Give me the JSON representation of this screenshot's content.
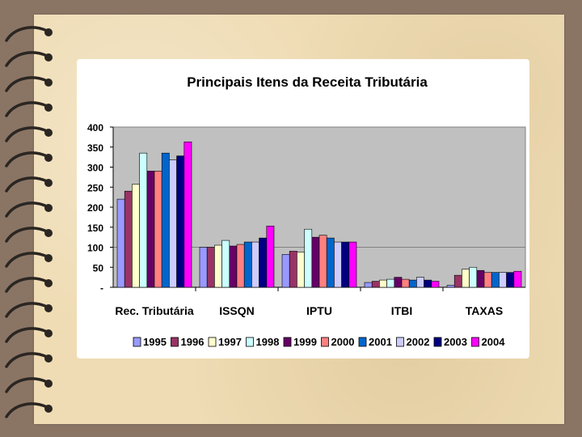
{
  "chart_data": {
    "type": "bar",
    "title": "Principais Itens da Receita Tributária",
    "xlabel": "",
    "ylabel": "",
    "ylim": [
      0,
      400
    ],
    "yticks": [
      0,
      50,
      100,
      150,
      200,
      250,
      300,
      350,
      400
    ],
    "ytick_labels": [
      "-",
      "50",
      "100",
      "150",
      "200",
      "250",
      "300",
      "350",
      "400"
    ],
    "grid": "horizontal",
    "legend": "bottom",
    "categories": [
      "Rec. Tributária",
      "ISSQN",
      "IPTU",
      "ITBI",
      "TAXAS"
    ],
    "series": [
      {
        "name": "1995",
        "color": "#9999ff",
        "values": [
          220,
          100,
          82,
          12,
          5
        ]
      },
      {
        "name": "1996",
        "color": "#993366",
        "values": [
          240,
          100,
          90,
          15,
          30
        ]
      },
      {
        "name": "1997",
        "color": "#ffffcc",
        "values": [
          257,
          105,
          88,
          18,
          45
        ]
      },
      {
        "name": "1998",
        "color": "#ccffff",
        "values": [
          335,
          117,
          145,
          20,
          50
        ]
      },
      {
        "name": "1999",
        "color": "#660066",
        "values": [
          290,
          103,
          125,
          25,
          42
        ]
      },
      {
        "name": "2000",
        "color": "#ff8080",
        "values": [
          290,
          107,
          130,
          20,
          37
        ]
      },
      {
        "name": "2001",
        "color": "#0066cc",
        "values": [
          335,
          113,
          123,
          18,
          37
        ]
      },
      {
        "name": "2002",
        "color": "#ccccff",
        "values": [
          318,
          113,
          113,
          25,
          37
        ]
      },
      {
        "name": "2003",
        "color": "#000080",
        "values": [
          328,
          123,
          113,
          18,
          37
        ]
      },
      {
        "name": "2004",
        "color": "#ff00ff",
        "values": [
          363,
          153,
          113,
          15,
          40
        ]
      }
    ]
  }
}
